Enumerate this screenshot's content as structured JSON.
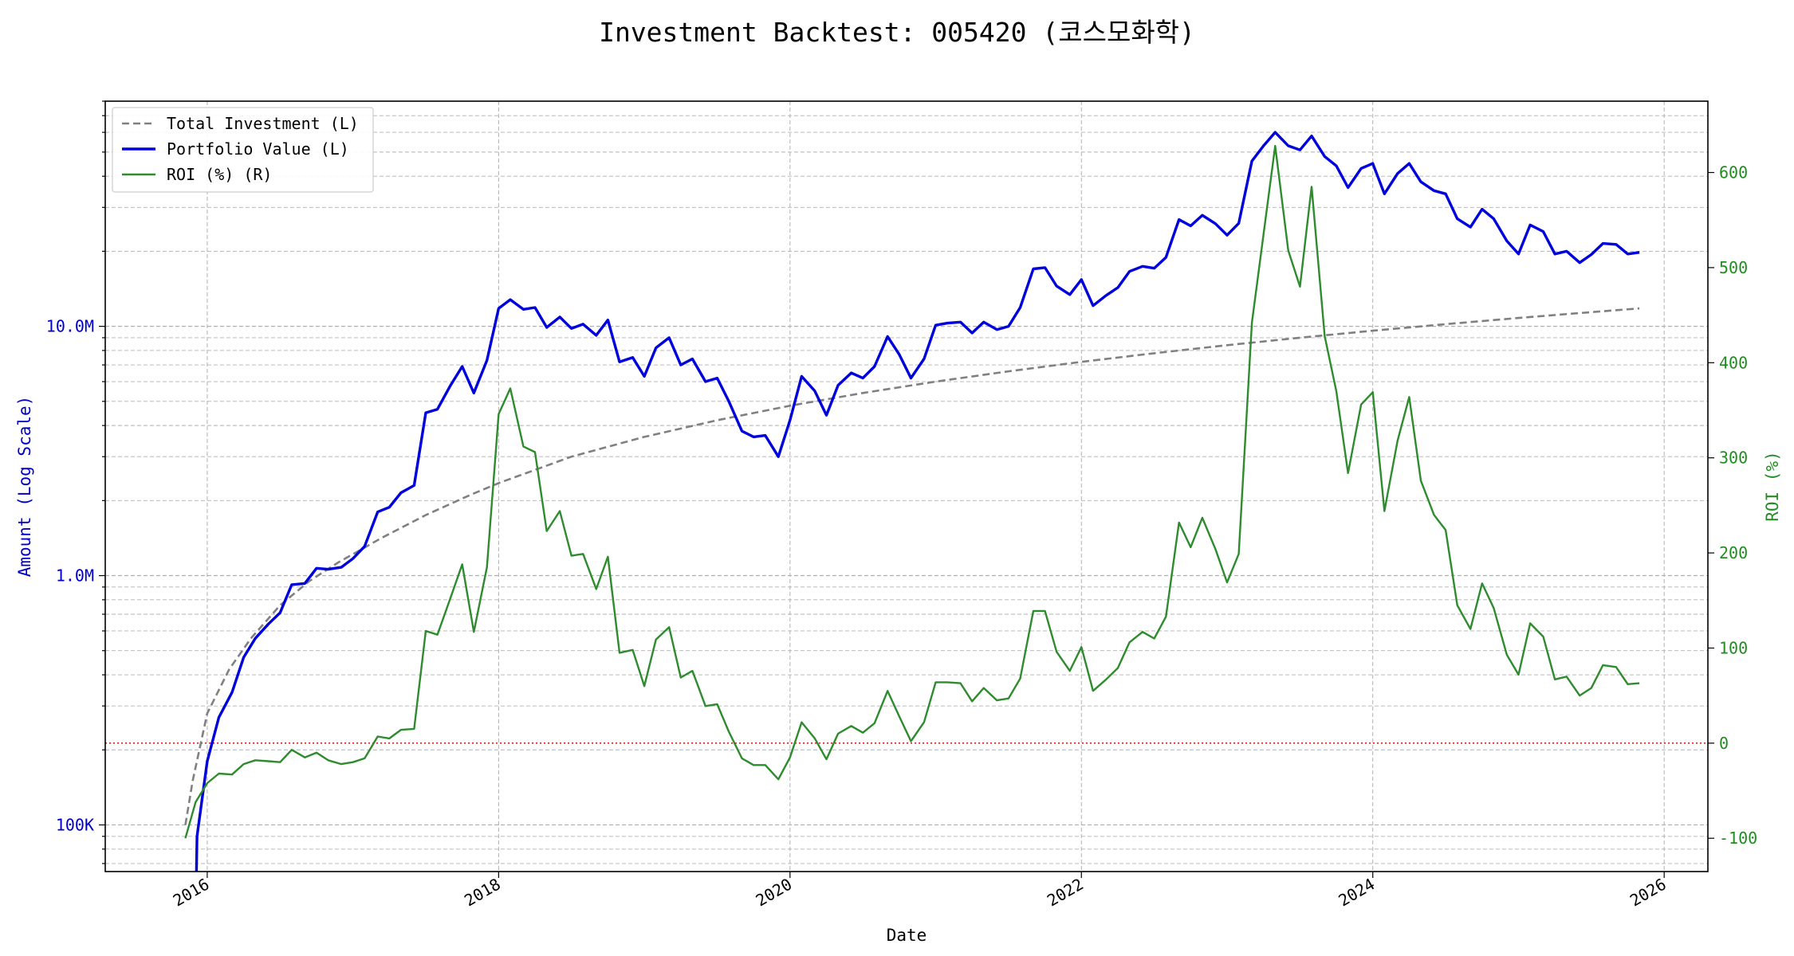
{
  "chart_data": {
    "type": "line",
    "title": "Investment Backtest: 005420 (코스모화학)",
    "xlabel": "Date",
    "ylabel_left": "Amount (Log Scale)",
    "ylabel_right": "ROI (%)",
    "x_range": [
      2015.3,
      2026.3
    ],
    "x_ticks": [
      2016,
      2018,
      2020,
      2022,
      2024,
      2026
    ],
    "y_left_scale": "log",
    "y_left_range": [
      65000,
      80000000
    ],
    "y_left_ticks": [
      {
        "value": 100000,
        "label": "100K"
      },
      {
        "value": 1000000,
        "label": "1.0M"
      },
      {
        "value": 10000000,
        "label": "10.0M"
      }
    ],
    "y_right_range": [
      -135,
      675
    ],
    "y_right_ticks": [
      -100,
      0,
      100,
      200,
      300,
      400,
      500,
      600
    ],
    "zero_reference_line": {
      "axis": "right",
      "value": 0,
      "color": "#cc0000",
      "style": "dotted"
    },
    "grid": true,
    "legend_position": "top-left",
    "colors": {
      "total_investment": "#808080",
      "portfolio_value": "#0000dd",
      "roi": "#2e8b2e"
    },
    "series": [
      {
        "name": "Total Investment (L)",
        "axis": "left",
        "style": "dashed",
        "points": [
          [
            2015.85,
            100000
          ],
          [
            2015.9,
            150000
          ],
          [
            2016.0,
            280000
          ],
          [
            2016.15,
            420000
          ],
          [
            2016.3,
            560000
          ],
          [
            2016.5,
            760000
          ],
          [
            2016.7,
            950000
          ],
          [
            2016.9,
            1130000
          ],
          [
            2017.2,
            1420000
          ],
          [
            2017.5,
            1750000
          ],
          [
            2017.8,
            2100000
          ],
          [
            2018.0,
            2350000
          ],
          [
            2018.5,
            3000000
          ],
          [
            2019.0,
            3600000
          ],
          [
            2019.5,
            4200000
          ],
          [
            2020.0,
            4800000
          ],
          [
            2020.5,
            5400000
          ],
          [
            2021.0,
            6000000
          ],
          [
            2021.5,
            6600000
          ],
          [
            2022.0,
            7200000
          ],
          [
            2022.5,
            7800000
          ],
          [
            2023.0,
            8400000
          ],
          [
            2023.5,
            9000000
          ],
          [
            2024.0,
            9600000
          ],
          [
            2024.5,
            10200000
          ],
          [
            2025.0,
            10800000
          ],
          [
            2025.5,
            11400000
          ],
          [
            2025.83,
            11800000
          ]
        ]
      },
      {
        "name": "Portfolio Value (L)",
        "axis": "left",
        "style": "solid",
        "points": [
          [
            2015.92,
            40000
          ],
          [
            2015.93,
            90000
          ],
          [
            2016.0,
            180000
          ],
          [
            2016.08,
            270000
          ],
          [
            2016.17,
            340000
          ],
          [
            2016.25,
            470000
          ],
          [
            2016.33,
            560000
          ],
          [
            2016.42,
            640000
          ],
          [
            2016.5,
            710000
          ],
          [
            2016.58,
            920000
          ],
          [
            2016.67,
            930000
          ],
          [
            2016.75,
            1070000
          ],
          [
            2016.83,
            1060000
          ],
          [
            2016.92,
            1080000
          ],
          [
            2017.0,
            1170000
          ],
          [
            2017.08,
            1310000
          ],
          [
            2017.17,
            1800000
          ],
          [
            2017.25,
            1880000
          ],
          [
            2017.33,
            2150000
          ],
          [
            2017.42,
            2300000
          ],
          [
            2017.5,
            4500000
          ],
          [
            2017.58,
            4650000
          ],
          [
            2017.67,
            5800000
          ],
          [
            2017.75,
            6900000
          ],
          [
            2017.83,
            5400000
          ],
          [
            2017.92,
            7300000
          ],
          [
            2018.0,
            11800000
          ],
          [
            2018.08,
            12800000
          ],
          [
            2018.17,
            11700000
          ],
          [
            2018.25,
            11900000
          ],
          [
            2018.33,
            9900000
          ],
          [
            2018.42,
            10900000
          ],
          [
            2018.5,
            9800000
          ],
          [
            2018.58,
            10200000
          ],
          [
            2018.67,
            9200000
          ],
          [
            2018.75,
            10600000
          ],
          [
            2018.83,
            7200000
          ],
          [
            2018.92,
            7500000
          ],
          [
            2019.0,
            6300000
          ],
          [
            2019.08,
            8200000
          ],
          [
            2019.17,
            9000000
          ],
          [
            2019.25,
            7000000
          ],
          [
            2019.33,
            7400000
          ],
          [
            2019.42,
            6000000
          ],
          [
            2019.5,
            6200000
          ],
          [
            2019.58,
            5000000
          ],
          [
            2019.67,
            3800000
          ],
          [
            2019.75,
            3600000
          ],
          [
            2019.83,
            3650000
          ],
          [
            2019.92,
            3000000
          ],
          [
            2020.0,
            4200000
          ],
          [
            2020.08,
            6300000
          ],
          [
            2020.17,
            5500000
          ],
          [
            2020.25,
            4400000
          ],
          [
            2020.33,
            5800000
          ],
          [
            2020.42,
            6500000
          ],
          [
            2020.5,
            6200000
          ],
          [
            2020.58,
            6900000
          ],
          [
            2020.67,
            9100000
          ],
          [
            2020.75,
            7700000
          ],
          [
            2020.83,
            6200000
          ],
          [
            2020.92,
            7400000
          ],
          [
            2021.0,
            10100000
          ],
          [
            2021.08,
            10300000
          ],
          [
            2021.17,
            10400000
          ],
          [
            2021.25,
            9400000
          ],
          [
            2021.33,
            10400000
          ],
          [
            2021.42,
            9700000
          ],
          [
            2021.5,
            10000000
          ],
          [
            2021.58,
            11900000
          ],
          [
            2021.67,
            17000000
          ],
          [
            2021.75,
            17200000
          ],
          [
            2021.83,
            14500000
          ],
          [
            2021.92,
            13400000
          ],
          [
            2022.0,
            15400000
          ],
          [
            2022.08,
            12100000
          ],
          [
            2022.17,
            13300000
          ],
          [
            2022.25,
            14300000
          ],
          [
            2022.33,
            16600000
          ],
          [
            2022.42,
            17400000
          ],
          [
            2022.5,
            17100000
          ],
          [
            2022.58,
            18900000
          ],
          [
            2022.67,
            26800000
          ],
          [
            2022.75,
            25300000
          ],
          [
            2022.83,
            27900000
          ],
          [
            2022.92,
            25800000
          ],
          [
            2023.0,
            23200000
          ],
          [
            2023.08,
            25900000
          ],
          [
            2023.17,
            46000000
          ],
          [
            2023.25,
            53000000
          ],
          [
            2023.33,
            60000000
          ],
          [
            2023.42,
            53000000
          ],
          [
            2023.5,
            51000000
          ],
          [
            2023.58,
            58000000
          ],
          [
            2023.67,
            48000000
          ],
          [
            2023.75,
            44000000
          ],
          [
            2023.83,
            36000000
          ],
          [
            2023.92,
            43000000
          ],
          [
            2024.0,
            45000000
          ],
          [
            2024.08,
            34000000
          ],
          [
            2024.17,
            41000000
          ],
          [
            2024.25,
            45000000
          ],
          [
            2024.33,
            38000000
          ],
          [
            2024.42,
            35000000
          ],
          [
            2024.5,
            34000000
          ],
          [
            2024.58,
            27000000
          ],
          [
            2024.67,
            25000000
          ],
          [
            2024.75,
            29500000
          ],
          [
            2024.83,
            27000000
          ],
          [
            2024.92,
            22000000
          ],
          [
            2025.0,
            19500000
          ],
          [
            2025.08,
            25500000
          ],
          [
            2025.17,
            24000000
          ],
          [
            2025.25,
            19500000
          ],
          [
            2025.33,
            20000000
          ],
          [
            2025.42,
            18000000
          ],
          [
            2025.5,
            19400000
          ],
          [
            2025.58,
            21500000
          ],
          [
            2025.67,
            21300000
          ],
          [
            2025.75,
            19500000
          ],
          [
            2025.83,
            19800000
          ]
        ]
      },
      {
        "name": "ROI (%) (R)",
        "axis": "right",
        "style": "solid",
        "points": [
          [
            2015.85,
            -100
          ],
          [
            2015.92,
            -62
          ],
          [
            2016.0,
            -42
          ],
          [
            2016.08,
            -32
          ],
          [
            2016.17,
            -33
          ],
          [
            2016.25,
            -22
          ],
          [
            2016.33,
            -18
          ],
          [
            2016.42,
            -19
          ],
          [
            2016.5,
            -20
          ],
          [
            2016.58,
            -7
          ],
          [
            2016.67,
            -15
          ],
          [
            2016.75,
            -10
          ],
          [
            2016.83,
            -18
          ],
          [
            2016.92,
            -22
          ],
          [
            2017.0,
            -20
          ],
          [
            2017.08,
            -16
          ],
          [
            2017.17,
            7
          ],
          [
            2017.25,
            5
          ],
          [
            2017.33,
            14
          ],
          [
            2017.42,
            15
          ],
          [
            2017.5,
            118
          ],
          [
            2017.58,
            114
          ],
          [
            2017.67,
            153
          ],
          [
            2017.75,
            188
          ],
          [
            2017.83,
            117
          ],
          [
            2017.92,
            185
          ],
          [
            2018.0,
            346
          ],
          [
            2018.08,
            373
          ],
          [
            2018.17,
            312
          ],
          [
            2018.25,
            306
          ],
          [
            2018.33,
            223
          ],
          [
            2018.42,
            244
          ],
          [
            2018.5,
            197
          ],
          [
            2018.58,
            199
          ],
          [
            2018.67,
            162
          ],
          [
            2018.75,
            196
          ],
          [
            2018.83,
            95
          ],
          [
            2018.92,
            98
          ],
          [
            2019.0,
            60
          ],
          [
            2019.08,
            109
          ],
          [
            2019.17,
            122
          ],
          [
            2019.25,
            69
          ],
          [
            2019.33,
            76
          ],
          [
            2019.42,
            39
          ],
          [
            2019.5,
            41
          ],
          [
            2019.58,
            12
          ],
          [
            2019.67,
            -16
          ],
          [
            2019.75,
            -23
          ],
          [
            2019.83,
            -23
          ],
          [
            2019.92,
            -38
          ],
          [
            2020.0,
            -15
          ],
          [
            2020.08,
            22
          ],
          [
            2020.17,
            5
          ],
          [
            2020.25,
            -17
          ],
          [
            2020.33,
            10
          ],
          [
            2020.42,
            18
          ],
          [
            2020.5,
            11
          ],
          [
            2020.58,
            21
          ],
          [
            2020.67,
            55
          ],
          [
            2020.75,
            28
          ],
          [
            2020.83,
            2
          ],
          [
            2020.92,
            22
          ],
          [
            2021.0,
            64
          ],
          [
            2021.08,
            64
          ],
          [
            2021.17,
            63
          ],
          [
            2021.25,
            44
          ],
          [
            2021.33,
            58
          ],
          [
            2021.42,
            45
          ],
          [
            2021.5,
            47
          ],
          [
            2021.58,
            68
          ],
          [
            2021.67,
            139
          ],
          [
            2021.75,
            139
          ],
          [
            2021.83,
            96
          ],
          [
            2021.92,
            76
          ],
          [
            2022.0,
            101
          ],
          [
            2022.08,
            55
          ],
          [
            2022.17,
            67
          ],
          [
            2022.25,
            79
          ],
          [
            2022.33,
            106
          ],
          [
            2022.42,
            117
          ],
          [
            2022.5,
            110
          ],
          [
            2022.58,
            133
          ],
          [
            2022.67,
            232
          ],
          [
            2022.75,
            206
          ],
          [
            2022.83,
            237
          ],
          [
            2022.92,
            204
          ],
          [
            2023.0,
            169
          ],
          [
            2023.08,
            199
          ],
          [
            2023.17,
            442
          ],
          [
            2023.25,
            535
          ],
          [
            2023.33,
            628
          ],
          [
            2023.42,
            518
          ],
          [
            2023.5,
            480
          ],
          [
            2023.58,
            585
          ],
          [
            2023.67,
            428
          ],
          [
            2023.75,
            370
          ],
          [
            2023.83,
            284
          ],
          [
            2023.92,
            356
          ],
          [
            2024.0,
            369
          ],
          [
            2024.08,
            244
          ],
          [
            2024.17,
            318
          ],
          [
            2024.25,
            364
          ],
          [
            2024.33,
            276
          ],
          [
            2024.42,
            240
          ],
          [
            2024.5,
            224
          ],
          [
            2024.58,
            145
          ],
          [
            2024.67,
            120
          ],
          [
            2024.75,
            168
          ],
          [
            2024.83,
            142
          ],
          [
            2024.92,
            93
          ],
          [
            2025.0,
            72
          ],
          [
            2025.08,
            126
          ],
          [
            2025.17,
            112
          ],
          [
            2025.25,
            67
          ],
          [
            2025.33,
            70
          ],
          [
            2025.42,
            50
          ],
          [
            2025.5,
            58
          ],
          [
            2025.58,
            82
          ],
          [
            2025.67,
            80
          ],
          [
            2025.75,
            62
          ],
          [
            2025.83,
            63
          ]
        ]
      }
    ]
  }
}
